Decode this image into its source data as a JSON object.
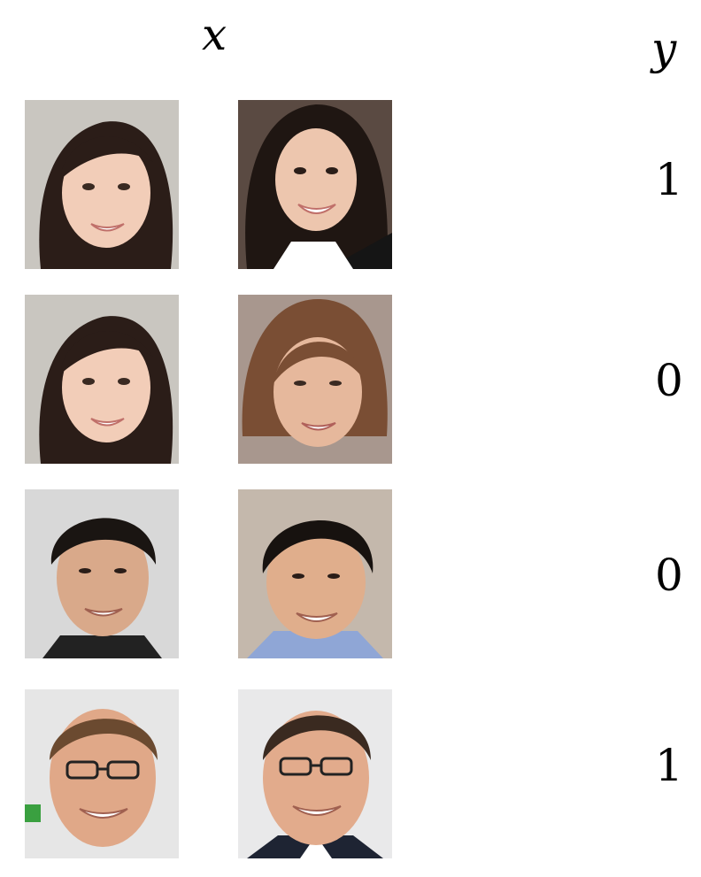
{
  "headers": {
    "x": "x",
    "y": "y"
  },
  "rows": [
    {
      "left": "woman-long-dark-hair-smiling-icon",
      "right": "woman-dark-hair-business-jacket-icon",
      "label": "1"
    },
    {
      "left": "woman-long-dark-hair-smiling-icon",
      "right": "older-woman-short-brown-hair-icon",
      "label": "0"
    },
    {
      "left": "man-short-dark-hair-icon",
      "right": "man-dark-hair-blue-shirt-icon",
      "label": "0"
    },
    {
      "left": "man-glasses-balding-icon",
      "right": "man-glasses-balding-dark-suit-icon",
      "label": "1"
    }
  ],
  "colors": {
    "background": "#ffffff",
    "text": "#000000"
  }
}
